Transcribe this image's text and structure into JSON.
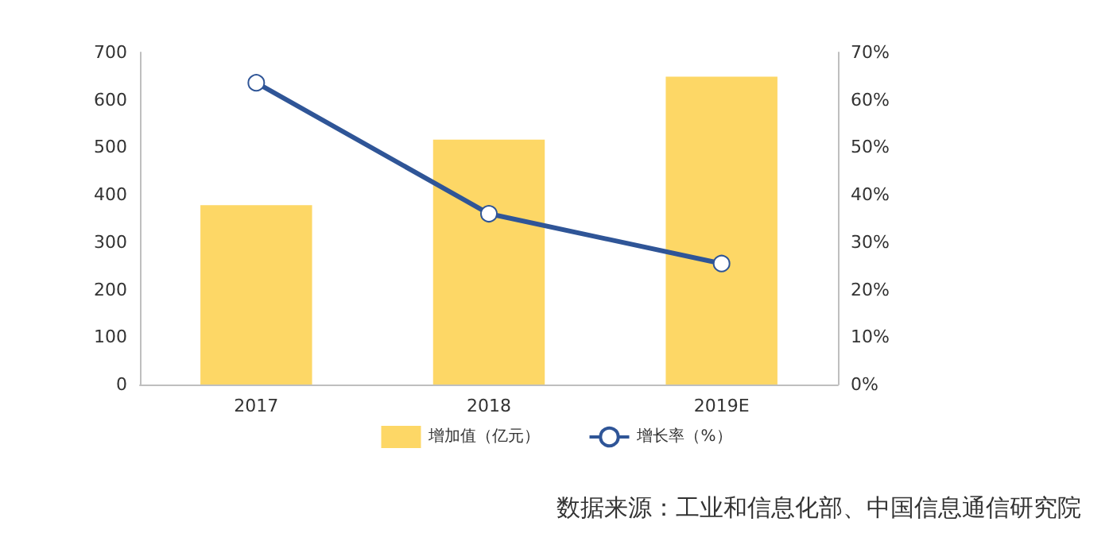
{
  "chart_data": {
    "type": "bar",
    "categories": [
      "2017",
      "2018",
      "2019E"
    ],
    "series": [
      {
        "name": "增加值（亿元）",
        "color": "#fdd766",
        "values": [
          378,
          516,
          649
        ]
      },
      {
        "name": "增长率（%）",
        "type": "line",
        "axis": "y2",
        "color": "#2f5597",
        "values": [
          63.6,
          36.0,
          25.5
        ]
      }
    ],
    "ylim": [
      0,
      700
    ],
    "yticks": [
      0,
      100,
      200,
      300,
      400,
      500,
      600,
      700
    ],
    "y2lim": [
      0,
      70
    ],
    "y2ticks": [
      {
        "value": 0,
        "label": "0%"
      },
      {
        "value": 10,
        "label": "10%"
      },
      {
        "value": 20,
        "label": "20%"
      },
      {
        "value": 30,
        "label": "30%"
      },
      {
        "value": 40,
        "label": "40%"
      },
      {
        "value": 50,
        "label": "50%"
      },
      {
        "value": 60,
        "label": "60%"
      },
      {
        "value": 70,
        "label": "70%"
      }
    ],
    "grid": false,
    "legend": "bottom",
    "marker": "circle",
    "line_style": "solid",
    "annotations": [
      "数据来源：工业和信息化部、中国信息通信研究院"
    ]
  }
}
